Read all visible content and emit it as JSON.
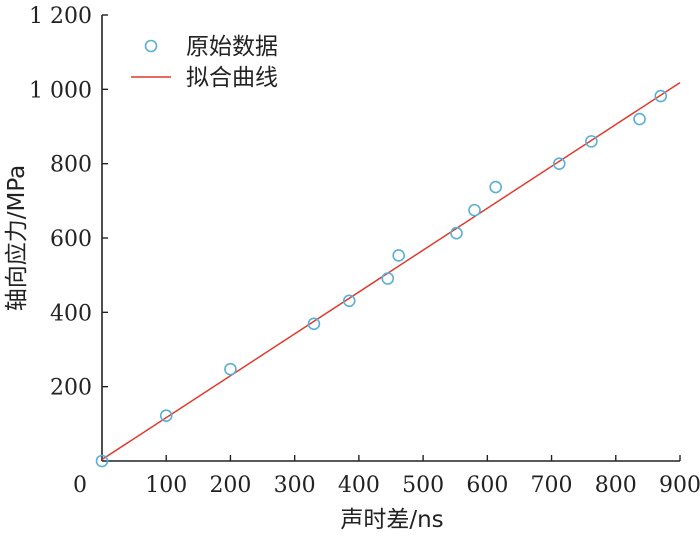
{
  "chart_data": {
    "type": "scatter",
    "title": "",
    "xlabel": "声时差/ns",
    "ylabel": "轴向应力/MPa",
    "xlim": [
      0,
      900
    ],
    "ylim": [
      0,
      1200
    ],
    "x_ticks": [
      0,
      100,
      200,
      300,
      400,
      500,
      600,
      700,
      800,
      900
    ],
    "x_tick_labels": [
      "0",
      "100",
      "200",
      "300",
      "400",
      "500",
      "600",
      "700",
      "800",
      "900"
    ],
    "y_ticks": [
      200,
      400,
      600,
      800,
      1000,
      1200
    ],
    "y_tick_labels": [
      "200",
      "400",
      "600",
      "800",
      "1 000",
      "1 200"
    ],
    "grid": false,
    "legend_position": "top-left",
    "series": [
      {
        "name": "原始数据",
        "kind": "scatter",
        "marker": "hollow-circle",
        "color": "#5aafd7",
        "x": [
          0,
          100,
          200,
          330,
          385,
          445,
          462,
          552,
          580,
          613,
          712,
          762,
          837,
          870
        ],
        "y": [
          0,
          122,
          247,
          369,
          431,
          491,
          553,
          613,
          675,
          737,
          800,
          860,
          920,
          982
        ]
      },
      {
        "name": "拟合曲线",
        "kind": "line",
        "color": "#e03a2c",
        "x": [
          0,
          900
        ],
        "y": [
          4,
          1018
        ]
      }
    ]
  }
}
